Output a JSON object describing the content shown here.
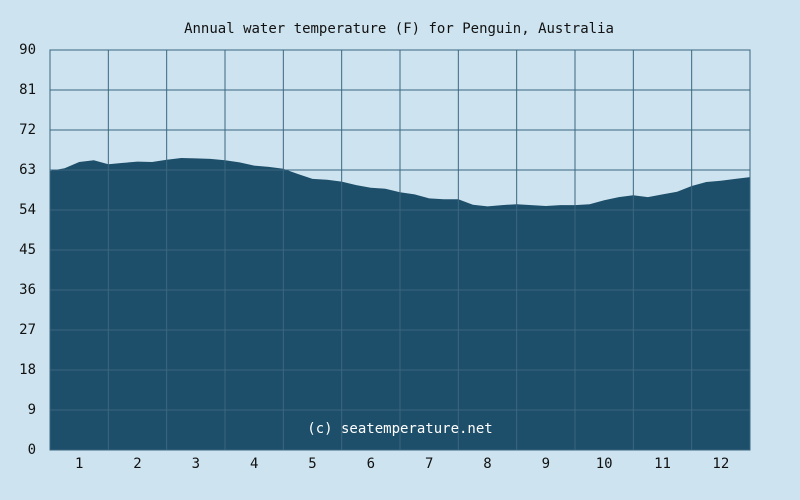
{
  "chart_data": {
    "type": "area",
    "title": "Annual water temperature (F) for Penguin, Australia",
    "xlabel": "",
    "ylabel": "",
    "x_ticks": [
      "1",
      "2",
      "3",
      "4",
      "5",
      "6",
      "7",
      "8",
      "9",
      "10",
      "11",
      "12"
    ],
    "y_ticks": [
      "0",
      "9",
      "18",
      "27",
      "36",
      "45",
      "54",
      "63",
      "72",
      "81",
      "90"
    ],
    "xlim": [
      0.5,
      12.5
    ],
    "ylim": [
      0,
      90
    ],
    "grid": true,
    "watermark": "(c) seatemperature.net",
    "series": [
      {
        "x": [
          0.5,
          0.75,
          1.0,
          1.25,
          1.5,
          1.75,
          2.0,
          2.25,
          2.5,
          2.75,
          3.0,
          3.25,
          3.5,
          3.75,
          4.0,
          4.25,
          4.5,
          4.75,
          5.0,
          5.25,
          5.5,
          5.75,
          6.0,
          6.25,
          6.5,
          6.75,
          7.0,
          7.25,
          7.5,
          7.75,
          8.0,
          8.25,
          8.5,
          8.75,
          9.0,
          9.25,
          9.5,
          9.75,
          10.0,
          10.25,
          10.5,
          10.75,
          11.0,
          11.25,
          11.5,
          11.75,
          12.0,
          12.25,
          12.5
        ],
        "values": [
          62.8,
          63.4,
          64.8,
          65.2,
          64.3,
          64.6,
          64.9,
          64.8,
          65.3,
          65.7,
          65.6,
          65.5,
          65.2,
          64.7,
          64.0,
          63.7,
          63.3,
          62.1,
          61.0,
          60.8,
          60.4,
          59.6,
          59.0,
          58.8,
          58.0,
          57.5,
          56.6,
          56.4,
          56.4,
          55.2,
          54.8,
          55.1,
          55.3,
          55.1,
          54.9,
          55.1,
          55.1,
          55.3,
          56.2,
          56.9,
          57.3,
          56.9,
          57.5,
          58.1,
          59.4,
          60.3,
          60.6,
          61.0,
          61.4
        ]
      }
    ],
    "colors": {
      "background": "#cde3ef",
      "area": "#1e4f6a",
      "grid": "#3b6680",
      "frame": "#3b6680"
    }
  }
}
